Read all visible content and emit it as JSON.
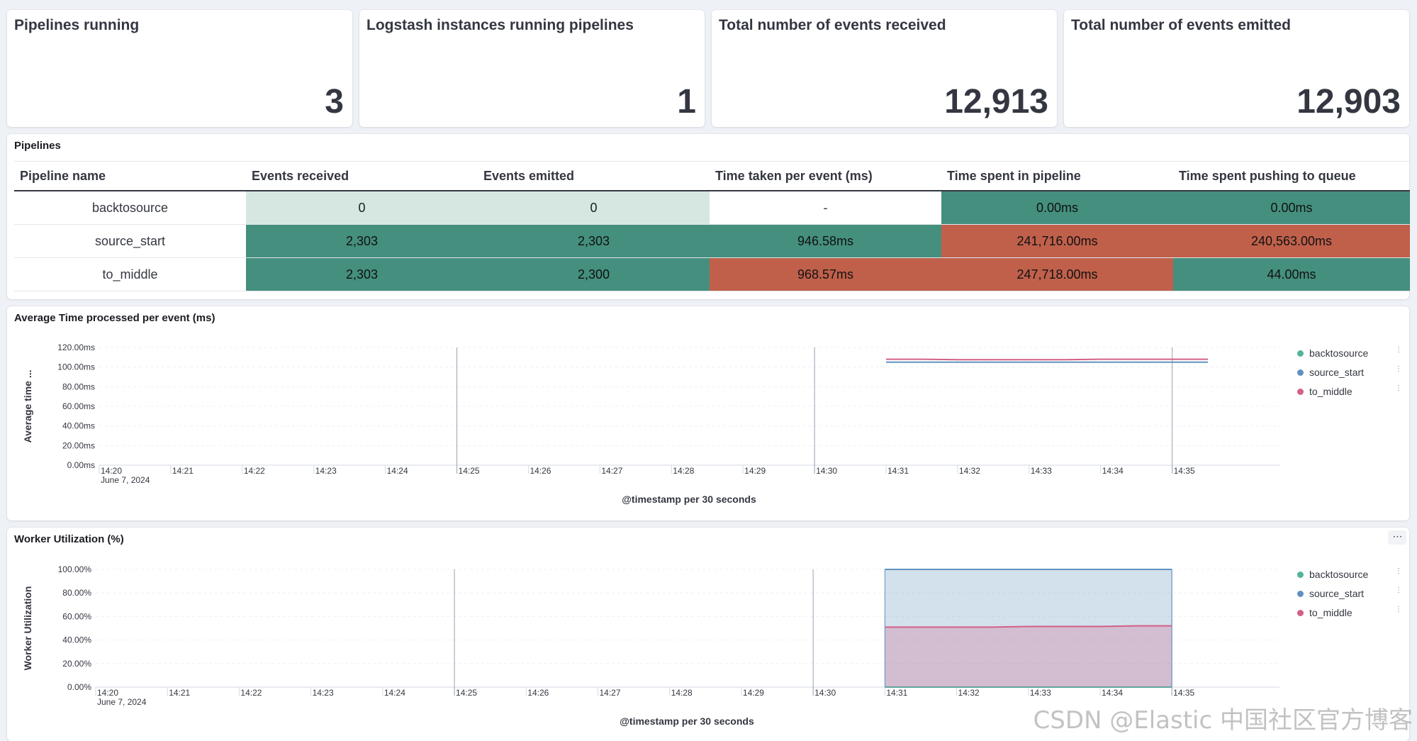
{
  "metrics": [
    {
      "title": "Pipelines running",
      "value": "3"
    },
    {
      "title": "Logstash instances running pipelines",
      "value": "1"
    },
    {
      "title": "Total number of events received",
      "value": "12,913"
    },
    {
      "title": "Total number of events emitted",
      "value": "12,903"
    }
  ],
  "pipelines_table": {
    "title": "Pipelines",
    "columns": [
      "Pipeline name",
      "Events received",
      "Events emitted",
      "Time taken per event (ms)",
      "Time spent in pipeline",
      "Time spent pushing to queue"
    ],
    "rows": [
      {
        "name": "backtosource",
        "cells": [
          {
            "v": "0",
            "c": "light"
          },
          {
            "v": "0",
            "c": "light"
          },
          {
            "v": "-",
            "c": "white"
          },
          {
            "v": "0.00ms",
            "c": "green"
          },
          {
            "v": "0.00ms",
            "c": "green"
          }
        ]
      },
      {
        "name": "source_start",
        "cells": [
          {
            "v": "2,303",
            "c": "green"
          },
          {
            "v": "2,303",
            "c": "green"
          },
          {
            "v": "946.58ms",
            "c": "green"
          },
          {
            "v": "241,716.00ms",
            "c": "red"
          },
          {
            "v": "240,563.00ms",
            "c": "red"
          }
        ]
      },
      {
        "name": "to_middle",
        "cells": [
          {
            "v": "2,303",
            "c": "green"
          },
          {
            "v": "2,300",
            "c": "green"
          },
          {
            "v": "968.57ms",
            "c": "red"
          },
          {
            "v": "247,718.00ms",
            "c": "red"
          },
          {
            "v": "44.00ms",
            "c": "green"
          }
        ]
      }
    ]
  },
  "legend": [
    {
      "name": "backtosource",
      "color": "#54b399"
    },
    {
      "name": "source_start",
      "color": "#6092c0"
    },
    {
      "name": "to_middle",
      "color": "#d36086"
    }
  ],
  "chart_data": [
    {
      "type": "line",
      "title": "Average Time processed per event (ms)",
      "ylabel": "Average time ...",
      "xlabel": "@timestamp per 30 seconds",
      "x_ticks": [
        "14:20",
        "14:21",
        "14:22",
        "14:23",
        "14:24",
        "14:25",
        "14:26",
        "14:27",
        "14:28",
        "14:29",
        "14:30",
        "14:31",
        "14:32",
        "14:33",
        "14:34",
        "14:35"
      ],
      "date_label": "June 7, 2024",
      "y_ticks": [
        "0.00ms",
        "20.00ms",
        "40.00ms",
        "60.00ms",
        "80.00ms",
        "100.00ms",
        "120.00ms"
      ],
      "ylim": [
        0,
        120
      ],
      "x": [
        "14:31:00",
        "14:31:30",
        "14:32:00",
        "14:32:30",
        "14:33:00",
        "14:33:30",
        "14:34:00",
        "14:34:30",
        "14:35:00",
        "14:35:30"
      ],
      "series": [
        {
          "name": "source_start",
          "values": [
            105,
            105,
            105,
            105,
            105,
            105,
            105,
            105,
            105,
            105
          ]
        },
        {
          "name": "to_middle",
          "values": [
            108,
            108,
            107.5,
            107.5,
            107.5,
            107.5,
            108,
            108,
            108,
            108
          ]
        }
      ]
    },
    {
      "type": "area",
      "title": "Worker Utilization (%)",
      "ylabel": "Worker Utilization",
      "xlabel": "@timestamp per 30 seconds",
      "x_ticks": [
        "14:20",
        "14:21",
        "14:22",
        "14:23",
        "14:24",
        "14:25",
        "14:26",
        "14:27",
        "14:28",
        "14:29",
        "14:30",
        "14:31",
        "14:32",
        "14:33",
        "14:34",
        "14:35"
      ],
      "date_label": "June 7, 2024",
      "y_ticks": [
        "0.00%",
        "20.00%",
        "40.00%",
        "60.00%",
        "80.00%",
        "100.00%"
      ],
      "ylim": [
        0,
        100
      ],
      "x": [
        "14:31:00",
        "14:31:30",
        "14:32:00",
        "14:32:30",
        "14:33:00",
        "14:33:30",
        "14:34:00",
        "14:34:30",
        "14:35:00"
      ],
      "series": [
        {
          "name": "backtosource",
          "values": [
            0,
            0,
            0,
            0,
            0,
            0,
            0,
            0,
            0
          ]
        },
        {
          "name": "source_start",
          "values": [
            100,
            100,
            100,
            100,
            100,
            100,
            100,
            100,
            100
          ]
        },
        {
          "name": "to_middle",
          "values": [
            51,
            51,
            51,
            51,
            51.5,
            51.5,
            51.5,
            52,
            52
          ]
        }
      ]
    }
  ],
  "watermark": "CSDN @Elastic 中国社区官方博客"
}
